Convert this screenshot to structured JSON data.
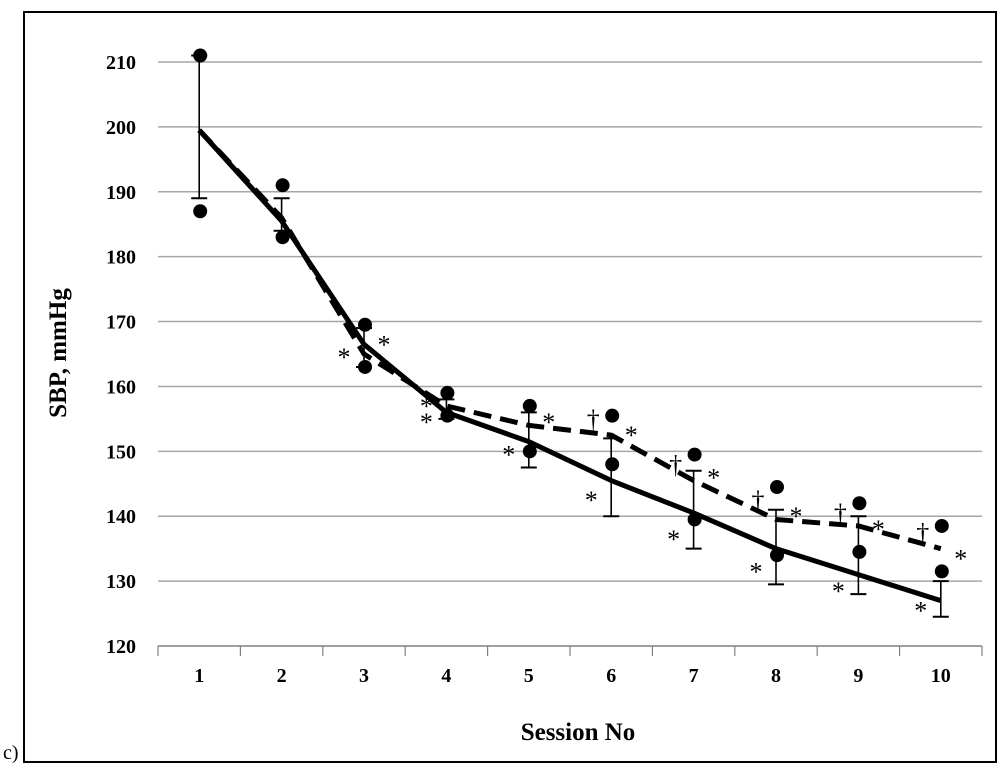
{
  "panel_label": "c)",
  "chart_data": {
    "type": "line",
    "xlabel": "Session No",
    "ylabel": "SBP, mmHg",
    "categories": [
      "1",
      "2",
      "3",
      "4",
      "5",
      "6",
      "7",
      "8",
      "9",
      "10"
    ],
    "ylim": [
      120,
      210
    ],
    "yticks": [
      "120",
      "130",
      "140",
      "150",
      "160",
      "170",
      "180",
      "190",
      "200",
      "210"
    ],
    "grid": "horizontal",
    "series": [
      {
        "style": "solid",
        "color": "#000000",
        "values": [
          199.5,
          185.5,
          166.5,
          156.0,
          151.5,
          145.5,
          140.5,
          135.0,
          131.0,
          127.0
        ]
      },
      {
        "style": "dashed",
        "color": "#000000",
        "values": [
          199.5,
          186.0,
          165.0,
          157.0,
          154.0,
          152.5,
          145.5,
          139.5,
          138.5,
          135.0
        ]
      }
    ],
    "points": [
      {
        "x": 1,
        "values": [
          211.0,
          187.0
        ]
      },
      {
        "x": 2,
        "values": [
          191.0,
          183.0
        ]
      },
      {
        "x": 3,
        "values": [
          169.5,
          163.0
        ]
      },
      {
        "x": 4,
        "values": [
          159.0,
          155.5
        ]
      },
      {
        "x": 5,
        "values": [
          157.0,
          150.0
        ]
      },
      {
        "x": 6,
        "values": [
          155.5,
          148.0
        ]
      },
      {
        "x": 7,
        "values": [
          149.5,
          139.5
        ]
      },
      {
        "x": 8,
        "values": [
          144.5,
          134.0
        ]
      },
      {
        "x": 9,
        "values": [
          142.0,
          134.5
        ]
      },
      {
        "x": 10,
        "values": [
          138.5,
          131.5
        ]
      }
    ],
    "error_bars": [
      {
        "x": 1,
        "low": 189.0,
        "high": 211.0
      },
      {
        "x": 2,
        "low": 184.0,
        "high": 189.0
      },
      {
        "x": 3,
        "low": 163.0,
        "high": 169.0
      },
      {
        "x": 4,
        "low": 155.0,
        "high": 158.0
      },
      {
        "x": 5,
        "low": 147.5,
        "high": 156.0
      },
      {
        "x": 6,
        "low": 140.0,
        "high": 152.0
      },
      {
        "x": 7,
        "low": 135.0,
        "high": 147.0
      },
      {
        "x": 8,
        "low": 129.5,
        "high": 141.0
      },
      {
        "x": 9,
        "low": 128.0,
        "high": 140.0
      },
      {
        "x": 10,
        "low": 124.5,
        "high": 130.0
      }
    ],
    "annotations": [
      {
        "text": "*",
        "x": 3,
        "y": 164.5
      },
      {
        "text": "*",
        "x": 3,
        "y": 166.5
      },
      {
        "text": "*",
        "x": 4,
        "y": 154.5
      },
      {
        "text": "*",
        "x": 4,
        "y": 157.0
      },
      {
        "text": "*",
        "x": 5,
        "y": 149.5
      },
      {
        "text": "*",
        "x": 5,
        "y": 154.5
      },
      {
        "text": "†",
        "x": 6,
        "y": 155.0
      },
      {
        "text": "*",
        "x": 6,
        "y": 152.5
      },
      {
        "text": "*",
        "x": 6,
        "y": 142.5
      },
      {
        "text": "†",
        "x": 7,
        "y": 148.0
      },
      {
        "text": "*",
        "x": 7,
        "y": 146.0
      },
      {
        "text": "*",
        "x": 7,
        "y": 136.5
      },
      {
        "text": "†",
        "x": 8,
        "y": 142.5
      },
      {
        "text": "*",
        "x": 8,
        "y": 140.0
      },
      {
        "text": "*",
        "x": 8,
        "y": 131.5
      },
      {
        "text": "†",
        "x": 9,
        "y": 140.5
      },
      {
        "text": "*",
        "x": 9,
        "y": 138.0
      },
      {
        "text": "*",
        "x": 9,
        "y": 128.5
      },
      {
        "text": "†",
        "x": 10,
        "y": 137.5
      },
      {
        "text": "*",
        "x": 10,
        "y": 133.5
      },
      {
        "text": "*",
        "x": 10,
        "y": 125.5
      }
    ]
  }
}
